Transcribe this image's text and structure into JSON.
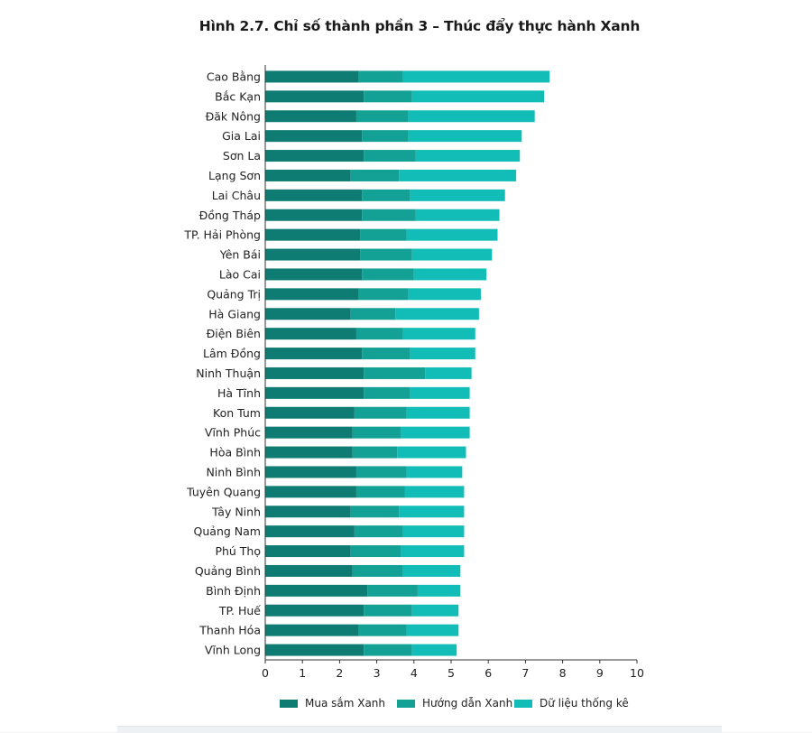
{
  "colors": {
    "series1": "#0e7c72",
    "series2": "#13a095",
    "series3": "#12bdb7",
    "axis": "#333333",
    "background": "#ffffff"
  },
  "chart_data": {
    "type": "bar",
    "orientation": "horizontal",
    "stacked": true,
    "title": "Hình 2.7. Chỉ số thành phần 3 – Thúc đẩy thực hành Xanh",
    "xlabel": "",
    "ylabel": "",
    "xlim": [
      0,
      10
    ],
    "xticks": [
      0,
      1,
      2,
      3,
      4,
      5,
      6,
      7,
      8,
      9,
      10
    ],
    "grid": false,
    "legend_position": "bottom",
    "categories": [
      "Cao Bằng",
      "Bắc Kạn",
      "Đăk Nông",
      "Gia Lai",
      "Sơn La",
      "Lạng Sơn",
      "Lai Châu",
      "Đồng Tháp",
      "TP. Hải Phòng",
      "Yên Bái",
      "Lào Cai",
      "Quảng Trị",
      "Hà Giang",
      "Điện Biên",
      "Lâm Đồng",
      "Ninh Thuận",
      "Hà Tĩnh",
      "Kon Tum",
      "Vĩnh Phúc",
      "Hòa Bình",
      "Ninh Bình",
      "Tuyên Quang",
      "Tây Ninh",
      "Quảng Nam",
      "Phú Thọ",
      "Quảng Bình",
      "Bình Định",
      "TP. Huế",
      "Thanh Hóa",
      "Vĩnh Long"
    ],
    "series": [
      {
        "name": "Mua sắm Xanh",
        "values": [
          2.5,
          2.65,
          2.45,
          2.6,
          2.65,
          2.3,
          2.6,
          2.6,
          2.55,
          2.55,
          2.6,
          2.5,
          2.3,
          2.45,
          2.6,
          2.65,
          2.65,
          2.4,
          2.35,
          2.35,
          2.45,
          2.45,
          2.3,
          2.4,
          2.3,
          2.35,
          2.75,
          2.65,
          2.5,
          2.65
        ]
      },
      {
        "name": "Hướng dẫn Xanh",
        "values": [
          1.2,
          1.3,
          1.4,
          1.25,
          1.4,
          1.3,
          1.3,
          1.45,
          1.25,
          1.4,
          1.4,
          1.35,
          1.2,
          1.25,
          1.3,
          1.65,
          1.25,
          1.4,
          1.3,
          1.2,
          1.35,
          1.3,
          1.3,
          1.3,
          1.35,
          1.35,
          1.35,
          1.3,
          1.3,
          1.3
        ]
      },
      {
        "name": "Dữ liệu thống kê",
        "values": [
          3.95,
          3.55,
          3.4,
          3.05,
          2.8,
          3.15,
          2.55,
          2.25,
          2.45,
          2.15,
          1.95,
          1.95,
          2.25,
          1.95,
          1.75,
          1.25,
          1.6,
          1.7,
          1.85,
          1.85,
          1.5,
          1.6,
          1.75,
          1.65,
          1.7,
          1.55,
          1.15,
          1.25,
          1.4,
          1.2
        ]
      }
    ]
  }
}
